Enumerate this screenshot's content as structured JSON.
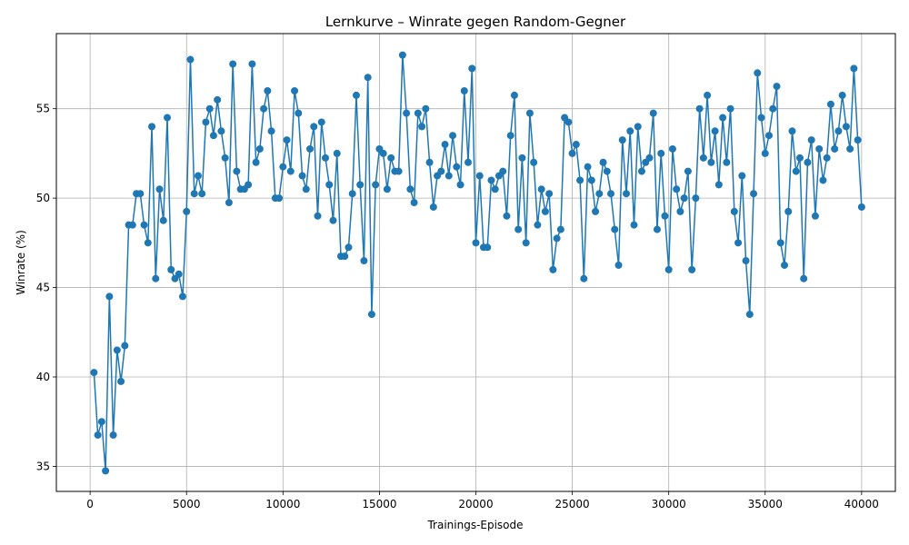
{
  "chart_data": {
    "type": "line",
    "title": "Lernkurve – Winrate gegen Random-Gegner",
    "xlabel": "Trainings-Episode",
    "ylabel": "Winrate (%)",
    "xlim": [
      -1750,
      41750
    ],
    "ylim": [
      33.6,
      59.2
    ],
    "xticks": [
      0,
      5000,
      10000,
      15000,
      20000,
      25000,
      30000,
      35000,
      40000
    ],
    "yticks": [
      35,
      40,
      45,
      50,
      55
    ],
    "grid": true,
    "color": "#1f77b4",
    "x_start": 200,
    "x_step": 200,
    "values": [
      40.25,
      36.75,
      37.5,
      34.75,
      44.5,
      36.75,
      41.5,
      39.75,
      41.75,
      48.5,
      48.5,
      50.25,
      50.25,
      48.5,
      47.5,
      54.0,
      45.5,
      50.5,
      48.75,
      54.5,
      46.0,
      45.5,
      45.75,
      44.5,
      49.25,
      57.75,
      50.25,
      51.25,
      50.25,
      54.25,
      55.0,
      53.5,
      55.5,
      53.75,
      52.25,
      49.75,
      57.5,
      51.5,
      50.5,
      50.5,
      50.75,
      57.5,
      52.0,
      52.75,
      55.0,
      56.0,
      53.75,
      50.0,
      50.0,
      51.75,
      53.25,
      51.5,
      56.0,
      54.75,
      51.25,
      50.5,
      52.75,
      54.0,
      49.0,
      54.25,
      52.25,
      50.75,
      48.75,
      52.5,
      46.75,
      46.75,
      47.25,
      50.25,
      55.75,
      50.75,
      46.5,
      56.75,
      43.5,
      50.75,
      52.75,
      52.5,
      50.5,
      52.25,
      51.5,
      51.5,
      58.0,
      54.75,
      50.5,
      49.75,
      54.75,
      54.0,
      55.0,
      52.0,
      49.5,
      51.25,
      51.5,
      53.0,
      51.25,
      53.5,
      51.75,
      50.75,
      56.0,
      52.0,
      57.25,
      47.5,
      51.25,
      47.25,
      47.25,
      51.0,
      50.5,
      51.25,
      51.5,
      49.0,
      53.5,
      55.75,
      48.25,
      52.25,
      47.5,
      54.75,
      52.0,
      48.5,
      50.5,
      49.25,
      50.25,
      46.0,
      47.75,
      48.25,
      54.5,
      54.25,
      52.5,
      53.0,
      51.0,
      45.5,
      51.75,
      51.0,
      49.25,
      50.25,
      52.0,
      51.5,
      50.25,
      48.25,
      46.25,
      53.25,
      50.25,
      53.75,
      48.5,
      54.0,
      51.5,
      52.0,
      52.25,
      54.75,
      48.25,
      52.5,
      49.0,
      46.0,
      52.75,
      50.5,
      49.25,
      50.0,
      51.5,
      46.0,
      50.0,
      55.0,
      52.25,
      55.75,
      52.0,
      53.75,
      50.75,
      54.5,
      52.0,
      55.0,
      49.25,
      47.5,
      51.25,
      46.5,
      43.5,
      50.25,
      57.0,
      54.5,
      52.5,
      53.5,
      55.0,
      56.25,
      47.5,
      46.25,
      49.25,
      53.75,
      51.5,
      52.25,
      45.5,
      52.0,
      53.25,
      49.0,
      52.75,
      51.0,
      52.25,
      55.25,
      52.75,
      53.75,
      55.75,
      54.0,
      52.75,
      57.25,
      53.25,
      49.5
    ]
  }
}
